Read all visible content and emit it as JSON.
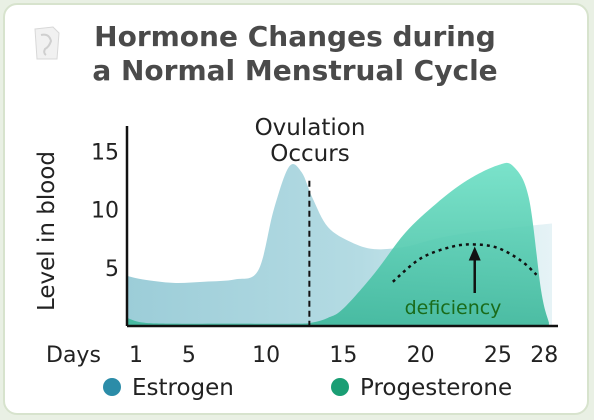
{
  "title_line1": "Hormone Changes during",
  "title_line2": "a Normal Menstrual Cycle",
  "chart_data": {
    "type": "area",
    "title": "Hormone Changes during a Normal Menstrual Cycle",
    "ylabel": "Level in blood",
    "xlabel": "Days",
    "x_ticks": [
      1,
      5,
      10,
      15,
      20,
      25,
      28
    ],
    "y_ticks": [
      5,
      10,
      15
    ],
    "xlim": [
      1,
      28.5
    ],
    "ylim": [
      0,
      17
    ],
    "grid": false,
    "legend_position": "bottom",
    "series": [
      {
        "name": "Estrogen",
        "color": "#a8d3dc",
        "legend_color": "#2b8ca8",
        "x": [
          1,
          2,
          4,
          6,
          8,
          9.5,
          10.5,
          11.5,
          12.3,
          13,
          14,
          15.5,
          17,
          19,
          21,
          23,
          25,
          27,
          28.5
        ],
        "y": [
          4.3,
          4,
          3.7,
          3.8,
          4,
          4.8,
          10,
          13.7,
          13.2,
          11,
          8.5,
          7.2,
          6.6,
          6.8,
          7.5,
          8,
          8.3,
          8.6,
          8.8
        ]
      },
      {
        "name": "Progesterone",
        "color": "#5fd3ba",
        "legend_color": "#1a9e74",
        "x": [
          1,
          2,
          4,
          8,
          12,
          13,
          14,
          15,
          17,
          19,
          21,
          23,
          25,
          26,
          27,
          27.8,
          28.3
        ],
        "y": [
          0.7,
          0.3,
          0.2,
          0.2,
          0.2,
          0.3,
          0.7,
          1.5,
          4.5,
          8,
          10.5,
          12.5,
          13.8,
          13.7,
          11,
          3,
          0.3
        ]
      },
      {
        "name": "Progesterone deficiency",
        "style": "dotted",
        "x": [
          18.2,
          20,
          22,
          23.5,
          25,
          26.5,
          27.5
        ],
        "y": [
          3.8,
          5.8,
          6.8,
          7,
          6.7,
          5.6,
          4.4
        ]
      }
    ],
    "annotations": [
      {
        "text_line1": "Ovulation",
        "text_line2": "Occurs",
        "x": 12.8,
        "style": "dashed vertical line"
      },
      {
        "text": "deficiency",
        "arrow_to_x": 23.5,
        "arrow_to_y": 7
      }
    ]
  },
  "legend": [
    {
      "label": "Estrogen",
      "color": "#2b8ca8"
    },
    {
      "label": "Progesterone",
      "color": "#1a9e74"
    }
  ]
}
